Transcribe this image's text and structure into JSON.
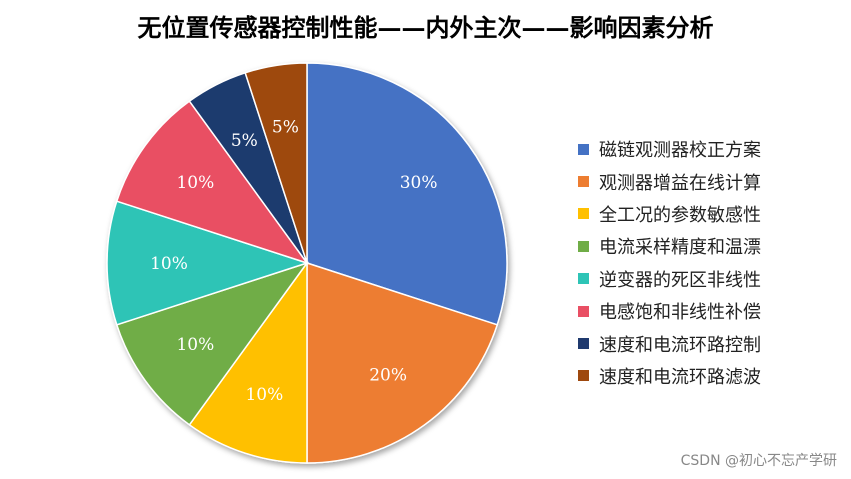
{
  "chart_data": {
    "type": "pie",
    "title": "无位置传感器控制性能——内外主次——影响因素分析",
    "categories": [
      "磁链观测器校正方案",
      "观测器增益在线计算",
      "全工况的参数敏感性",
      "电流采样精度和温漂",
      "逆变器的死区非线性",
      "电感饱和非线性补偿",
      "速度和电流环路控制",
      "速度和电流环路滤波"
    ],
    "values": [
      30,
      20,
      10,
      10,
      10,
      10,
      5,
      5
    ],
    "labels": [
      "30%",
      "20%",
      "10%",
      "10%",
      "10%",
      "10%",
      "5%",
      "5%"
    ],
    "colors": [
      "#4472C4",
      "#ED7D31",
      "#FFC000",
      "#70AD47",
      "#2EC4B6",
      "#E94F64",
      "#1F3A6E",
      "#9E480E"
    ],
    "label_colors": [
      "#ffffff",
      "#ffffff",
      "#ffffff",
      "#ffffff",
      "#ffffff",
      "#ffffff",
      "#ffffff",
      "#ffffff"
    ],
    "legend_position": "right"
  },
  "watermark": "CSDN @初心不忘产学研"
}
